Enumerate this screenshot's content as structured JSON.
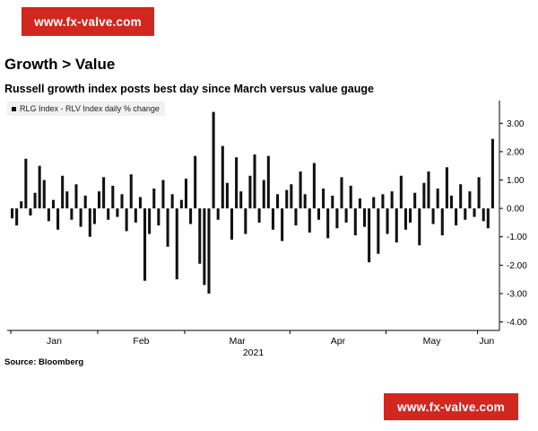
{
  "watermark": {
    "text": "www.fx-valve.com"
  },
  "header": {
    "title": "Growth > Value",
    "subtitle": "Russell growth index posts best day since March versus value gauge"
  },
  "legend": {
    "label": "RLG Index - RLV Index daily % change"
  },
  "source": "Source:  Bloomberg",
  "colors": {
    "bar": "#111111",
    "axis": "#000000",
    "watermark_bg": "#d2271e",
    "watermark_text": "#ffffff",
    "legend_bg": "#f1f1f1"
  },
  "chart_data": {
    "type": "bar",
    "title": "Growth > Value — Russell growth index posts best day since March versus value gauge",
    "xlabel": "2021 (Jan–Jun, trading days)",
    "ylabel": "RLG Index - RLV Index daily % change",
    "ylim": [
      -4.3,
      3.8
    ],
    "yticks": [
      3,
      2,
      1,
      0,
      -1,
      -2,
      -3,
      -4
    ],
    "ytick_labels": [
      "3.00",
      "2.00",
      "1.00",
      "0.00",
      "-1.00",
      "-2.00",
      "-3.00",
      "-4.00"
    ],
    "grid": false,
    "legend_position": "top-left",
    "year_label": "2021",
    "months": [
      {
        "label": "Jan",
        "start_index": 0
      },
      {
        "label": "Feb",
        "start_index": 19
      },
      {
        "label": "Mar",
        "start_index": 38
      },
      {
        "label": "Apr",
        "start_index": 61
      },
      {
        "label": "May",
        "start_index": 82
      },
      {
        "label": "Jun",
        "start_index": 102
      }
    ],
    "values": [
      -0.35,
      -0.6,
      0.25,
      1.75,
      -0.25,
      0.55,
      1.5,
      1.0,
      -0.45,
      0.3,
      -0.75,
      1.15,
      0.6,
      -0.4,
      0.85,
      -0.65,
      0.45,
      -1.0,
      -0.55,
      0.6,
      1.1,
      -0.4,
      0.8,
      -0.3,
      0.5,
      -0.8,
      1.2,
      -0.5,
      0.4,
      -2.55,
      -0.9,
      0.7,
      -0.6,
      1.0,
      -1.35,
      0.5,
      -2.5,
      0.3,
      1.05,
      -0.55,
      1.85,
      -1.95,
      -2.7,
      -3.0,
      3.4,
      -0.4,
      2.2,
      0.9,
      -1.1,
      1.8,
      0.6,
      -0.9,
      1.15,
      1.9,
      -0.5,
      1.0,
      1.85,
      -0.75,
      0.5,
      -1.15,
      0.65,
      0.85,
      -0.6,
      1.3,
      0.5,
      -0.85,
      1.6,
      -0.4,
      0.7,
      -1.05,
      0.45,
      -0.7,
      1.1,
      -0.5,
      0.8,
      -0.95,
      0.35,
      -0.65,
      -1.9,
      0.4,
      -1.6,
      0.5,
      -0.9,
      0.6,
      -1.2,
      1.15,
      -0.75,
      -0.5,
      0.55,
      -1.3,
      0.9,
      1.3,
      -0.55,
      0.7,
      -0.95,
      1.45,
      0.45,
      -0.6,
      0.85,
      -0.4,
      0.6,
      -0.3,
      1.1,
      -0.45,
      -0.7,
      2.45
    ]
  }
}
